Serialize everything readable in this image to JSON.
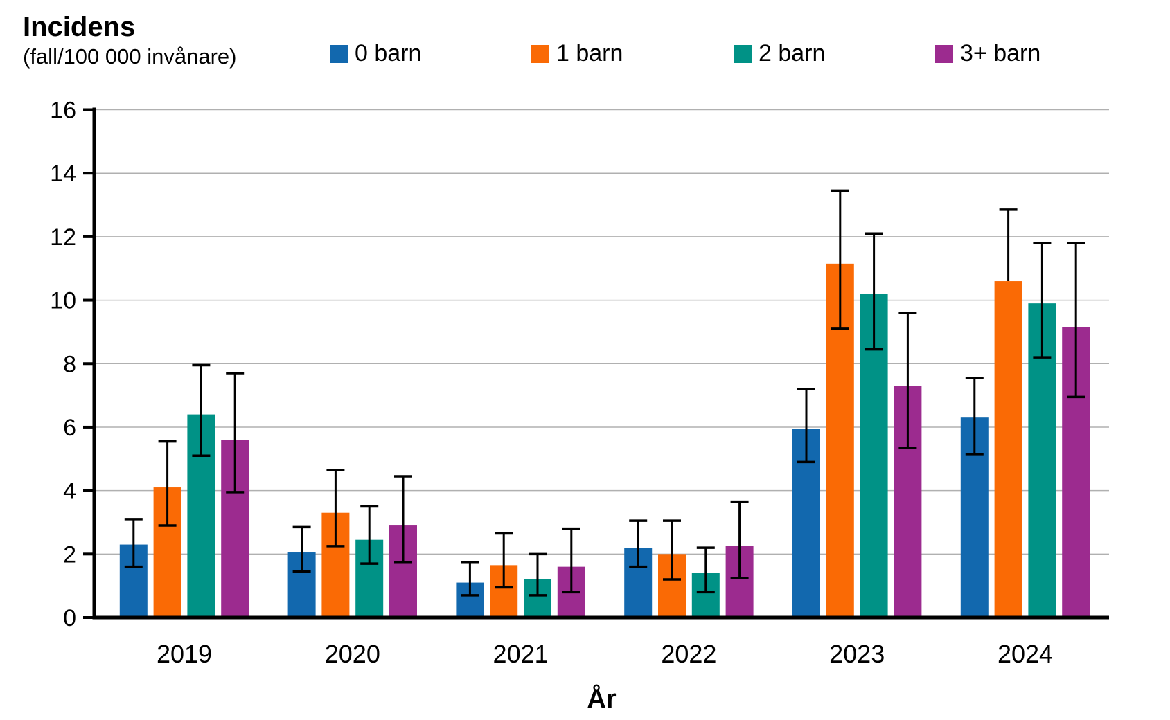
{
  "header": {
    "title": "Incidens",
    "subtitle": "(fall/100 000 invånare)"
  },
  "chart_data": {
    "type": "bar",
    "title": "Incidens",
    "subtitle": "(fall/100 000 invånare)",
    "xlabel": "År",
    "ylabel": "Incidens (fall/100 000 invånare)",
    "categories": [
      "2019",
      "2020",
      "2021",
      "2022",
      "2023",
      "2024"
    ],
    "ylim": [
      0,
      16
    ],
    "yticks": [
      0,
      2,
      4,
      6,
      8,
      10,
      12,
      14,
      16
    ],
    "grid": "horizontal",
    "gridline_color": "#b0b0b0",
    "legend_position": "top",
    "error_bars": true,
    "error_bar_color": "#000000",
    "series": [
      {
        "name": "0 barn",
        "color": "#1268ae",
        "values": [
          2.3,
          2.05,
          1.1,
          2.2,
          5.95,
          6.3
        ],
        "ci_low": [
          1.6,
          1.45,
          0.7,
          1.6,
          4.9,
          5.15
        ],
        "ci_high": [
          3.1,
          2.85,
          1.75,
          3.05,
          7.2,
          7.55
        ]
      },
      {
        "name": "1 barn",
        "color": "#fa6a05",
        "values": [
          4.1,
          3.3,
          1.65,
          2.0,
          11.15,
          10.6
        ],
        "ci_low": [
          2.9,
          2.25,
          0.95,
          1.2,
          9.1,
          null
        ],
        "ci_high": [
          5.55,
          4.65,
          2.65,
          3.05,
          13.45,
          12.85
        ]
      },
      {
        "name": "2 barn",
        "color": "#009286",
        "values": [
          6.4,
          2.45,
          1.2,
          1.4,
          10.2,
          9.9
        ],
        "ci_low": [
          5.1,
          1.7,
          0.7,
          0.8,
          8.45,
          8.2
        ],
        "ci_high": [
          7.95,
          3.5,
          2.0,
          2.2,
          12.1,
          11.8
        ]
      },
      {
        "name": "3+ barn",
        "color": "#9c2b8f",
        "values": [
          5.6,
          2.9,
          1.6,
          2.25,
          7.3,
          9.15
        ],
        "ci_low": [
          3.95,
          1.75,
          0.8,
          1.25,
          5.35,
          6.95
        ],
        "ci_high": [
          7.7,
          4.45,
          2.8,
          3.65,
          9.6,
          11.8
        ]
      }
    ]
  }
}
